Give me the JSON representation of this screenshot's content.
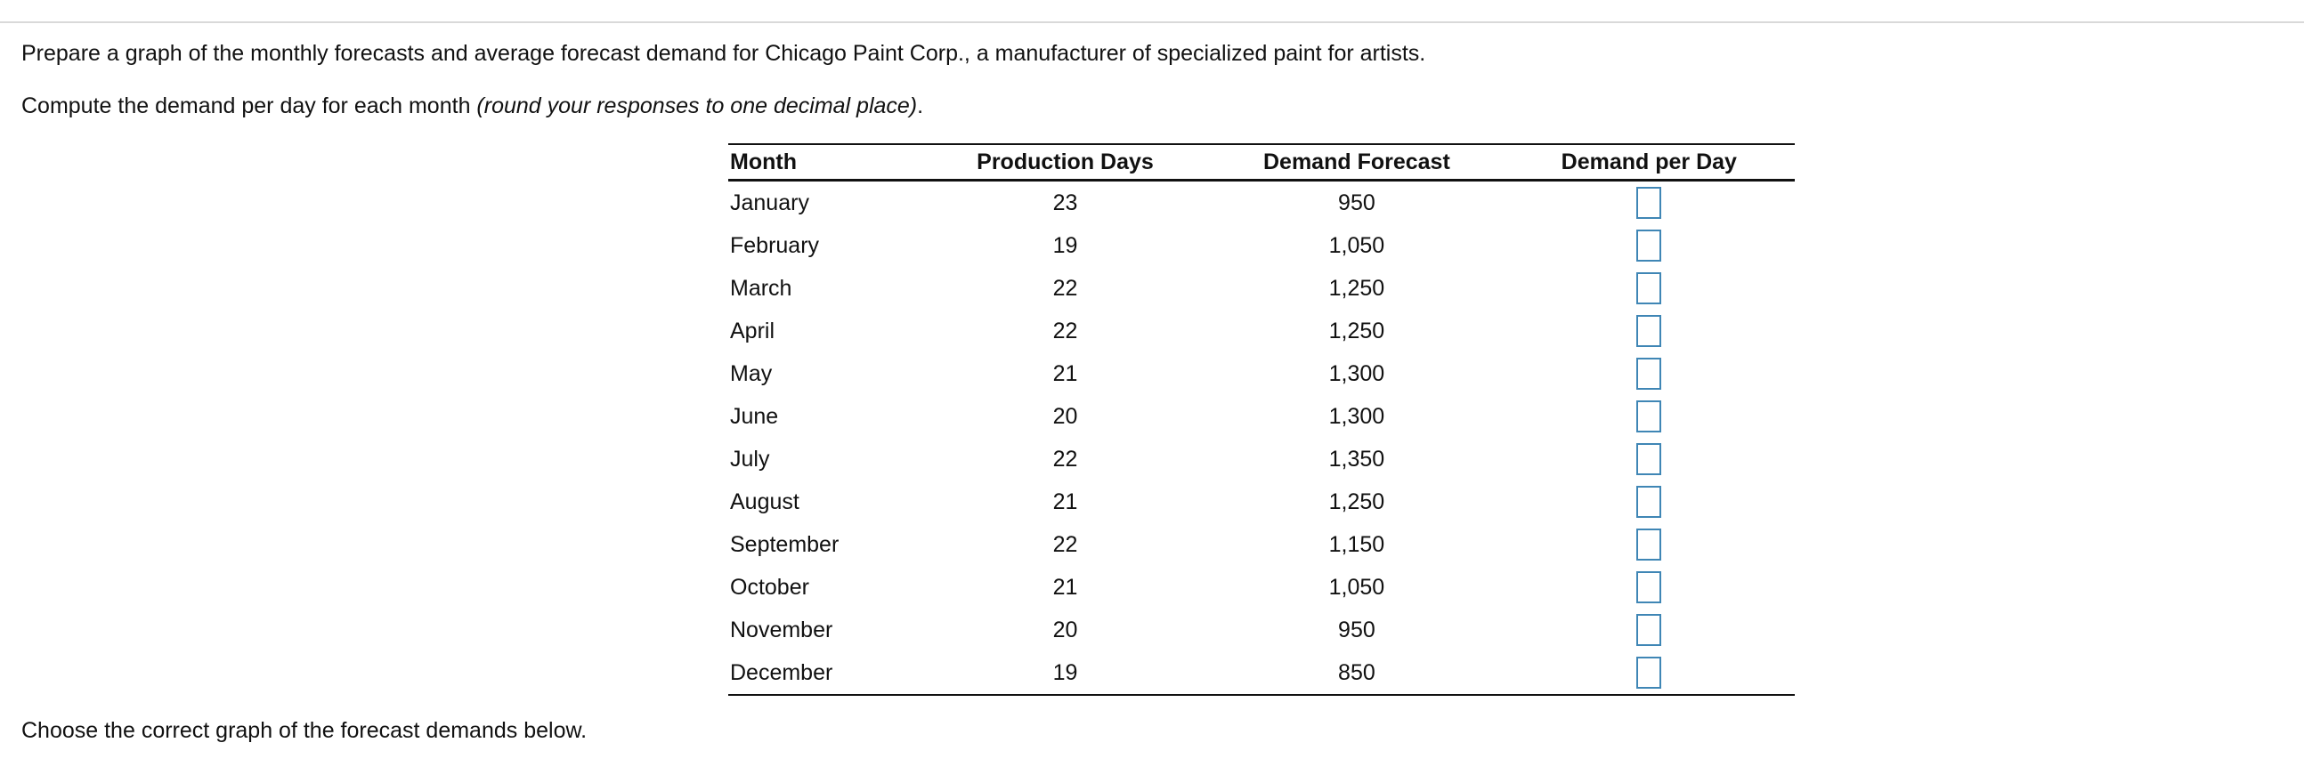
{
  "intro": {
    "line1": "Prepare a graph of the monthly forecasts and average forecast demand for Chicago Paint Corp., a manufacturer of specialized paint for artists.",
    "line2_main": "Compute the demand per day for each month ",
    "line2_italic": "(round your responses to one decimal place)",
    "line2_end": "."
  },
  "table": {
    "headers": {
      "month": "Month",
      "production_days": "Production Days",
      "demand_forecast": "Demand Forecast",
      "demand_per_day": "Demand per Day"
    },
    "rows": [
      {
        "month": "January",
        "days": "23",
        "demand": "950",
        "demand_per_day": ""
      },
      {
        "month": "February",
        "days": "19",
        "demand": "1,050",
        "demand_per_day": ""
      },
      {
        "month": "March",
        "days": "22",
        "demand": "1,250",
        "demand_per_day": ""
      },
      {
        "month": "April",
        "days": "22",
        "demand": "1,250",
        "demand_per_day": ""
      },
      {
        "month": "May",
        "days": "21",
        "demand": "1,300",
        "demand_per_day": ""
      },
      {
        "month": "June",
        "days": "20",
        "demand": "1,300",
        "demand_per_day": ""
      },
      {
        "month": "July",
        "days": "22",
        "demand": "1,350",
        "demand_per_day": ""
      },
      {
        "month": "August",
        "days": "21",
        "demand": "1,250",
        "demand_per_day": ""
      },
      {
        "month": "September",
        "days": "22",
        "demand": "1,150",
        "demand_per_day": ""
      },
      {
        "month": "October",
        "days": "21",
        "demand": "1,050",
        "demand_per_day": ""
      },
      {
        "month": "November",
        "days": "20",
        "demand": "950",
        "demand_per_day": ""
      },
      {
        "month": "December",
        "days": "19",
        "demand": "850",
        "demand_per_day": ""
      }
    ]
  },
  "footer": {
    "prompt": "Choose the correct graph of the forecast demands below."
  },
  "colors": {
    "input_border": "#3f86b5",
    "rule": "#d9d9d9"
  }
}
